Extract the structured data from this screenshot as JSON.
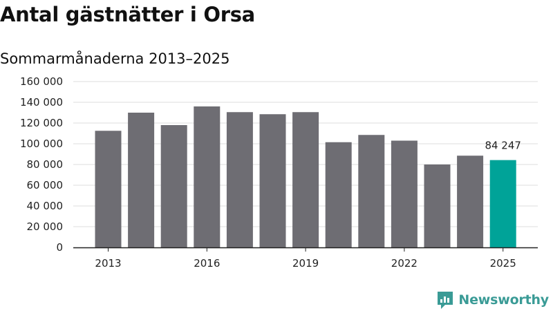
{
  "header": {
    "title": "Antal gästnätter i Orsa",
    "subtitle": "Sommarmånaderna 2013–2025"
  },
  "brand": {
    "name": "Newsworthy",
    "icon": "newsworthy-logo-icon",
    "color": "#3a9b96"
  },
  "chart_data": {
    "type": "bar",
    "title": "Antal gästnätter i Orsa",
    "subtitle": "Sommarmånaderna 2013–2025",
    "xlabel": "",
    "ylabel": "",
    "categories": [
      "2013",
      "2014",
      "2015",
      "2016",
      "2017",
      "2018",
      "2019",
      "2020",
      "2021",
      "2022",
      "2023",
      "2024",
      "2025"
    ],
    "values": [
      112500,
      130000,
      118000,
      136000,
      130500,
      128500,
      130500,
      101500,
      108500,
      103000,
      80000,
      88500,
      84247
    ],
    "ylim": [
      0,
      160000
    ],
    "yticks": [
      0,
      20000,
      40000,
      60000,
      80000,
      100000,
      120000,
      140000,
      160000
    ],
    "ytick_labels": [
      "0",
      "20 000",
      "40 000",
      "60 000",
      "80 000",
      "100 000",
      "120 000",
      "140 000",
      "160 000"
    ],
    "xtick_labels": [
      "2013",
      "2016",
      "2019",
      "2022",
      "2025"
    ],
    "grid": true,
    "legend": "none",
    "annotation": {
      "category": "2025",
      "text": "84 247"
    },
    "colors": {
      "bar": "#6e6d73",
      "highlight": "#00a398",
      "grid": "#dddddd",
      "axis": "#222222"
    }
  }
}
